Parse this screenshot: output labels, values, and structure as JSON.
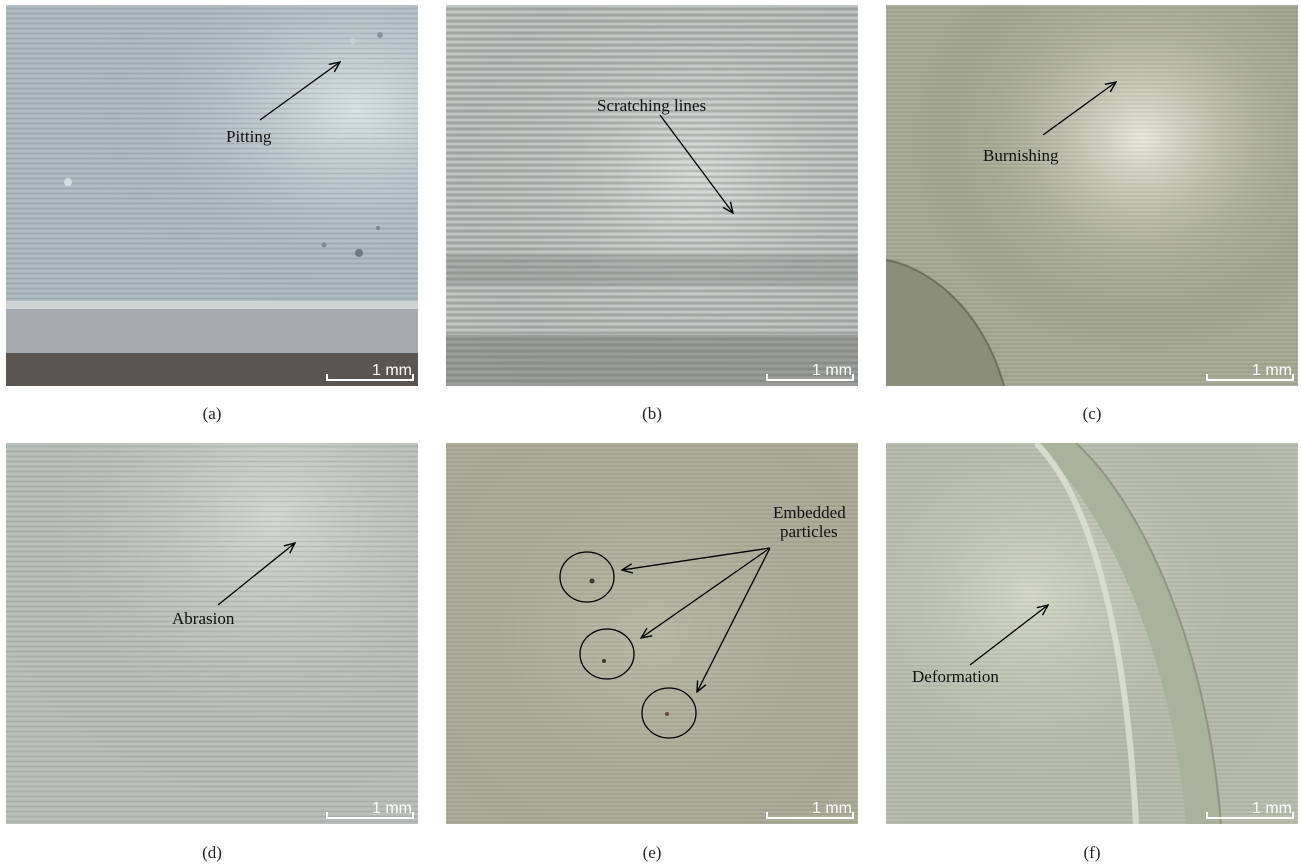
{
  "panels": [
    {
      "id": "a",
      "caption": "(a)",
      "label": "Pitting",
      "scale": "1 mm"
    },
    {
      "id": "b",
      "caption": "(b)",
      "label": "Scratching lines",
      "scale": "1 mm"
    },
    {
      "id": "c",
      "caption": "(c)",
      "label": "Burnishing",
      "scale": "1 mm"
    },
    {
      "id": "d",
      "caption": "(d)",
      "label": "Abrasion",
      "scale": "1 mm"
    },
    {
      "id": "e",
      "caption": "(e)",
      "label_line1": "Embedded",
      "label_line2": "particles",
      "scale": "1 mm"
    },
    {
      "id": "f",
      "caption": "(f)",
      "label": "Deformation",
      "scale": "1 mm"
    }
  ],
  "colors": {
    "a_surface": "#a9b4ba",
    "b_surface": "#b1b6b3",
    "c_surface": "#a2a591",
    "d_surface": "#b3b9b4",
    "e_surface": "#a8a895",
    "f_surface": "#b4b9aa",
    "arrow": "#000000",
    "scalebar": "#ffffff"
  }
}
